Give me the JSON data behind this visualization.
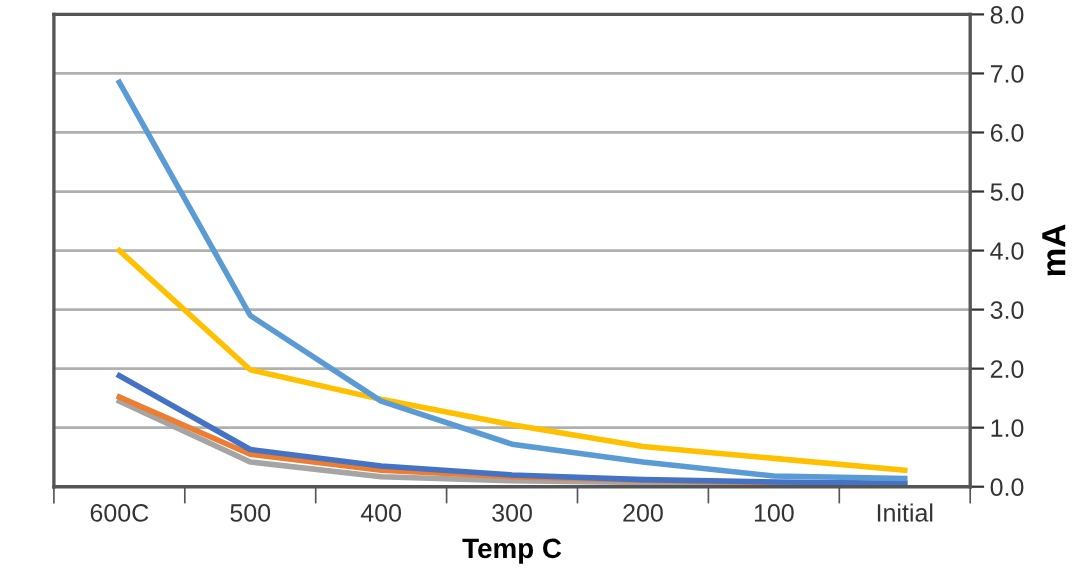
{
  "chart_data": {
    "type": "line",
    "xlabel": "Temp C",
    "ylabel": "mA",
    "categories": [
      "600C",
      "500",
      "400",
      "300",
      "200",
      "100",
      "Initial"
    ],
    "series": [
      {
        "color": "#a5a5a5",
        "values": [
          1.45,
          0.42,
          0.17,
          0.1,
          0.07,
          0.05,
          0.04
        ]
      },
      {
        "color": "#ed7d31",
        "values": [
          1.52,
          0.55,
          0.28,
          0.17,
          0.11,
          0.07,
          null
        ]
      },
      {
        "color": "#4472c4",
        "values": [
          1.88,
          0.63,
          0.35,
          0.2,
          0.12,
          0.08,
          0.06
        ]
      },
      {
        "color": "#ffc000",
        "values": [
          4.0,
          1.98,
          1.48,
          1.05,
          0.68,
          0.48,
          0.28
        ]
      },
      {
        "color": "#5b9bd5",
        "values": [
          6.85,
          2.9,
          1.45,
          0.72,
          0.42,
          0.18,
          0.14
        ]
      }
    ],
    "ylim": [
      0,
      8
    ],
    "yticks": [
      {
        "value": 0,
        "label": "0.0"
      },
      {
        "value": 1,
        "label": "1.0"
      },
      {
        "value": 2,
        "label": "2.0"
      },
      {
        "value": 3,
        "label": "3.0"
      },
      {
        "value": 4,
        "label": "4.0"
      },
      {
        "value": 5,
        "label": "5.0"
      },
      {
        "value": 6,
        "label": "6.0"
      },
      {
        "value": 7,
        "label": "7.0"
      },
      {
        "value": 8,
        "label": "8.0"
      }
    ],
    "grid": "y",
    "marker": "none",
    "line_style": "solid"
  }
}
